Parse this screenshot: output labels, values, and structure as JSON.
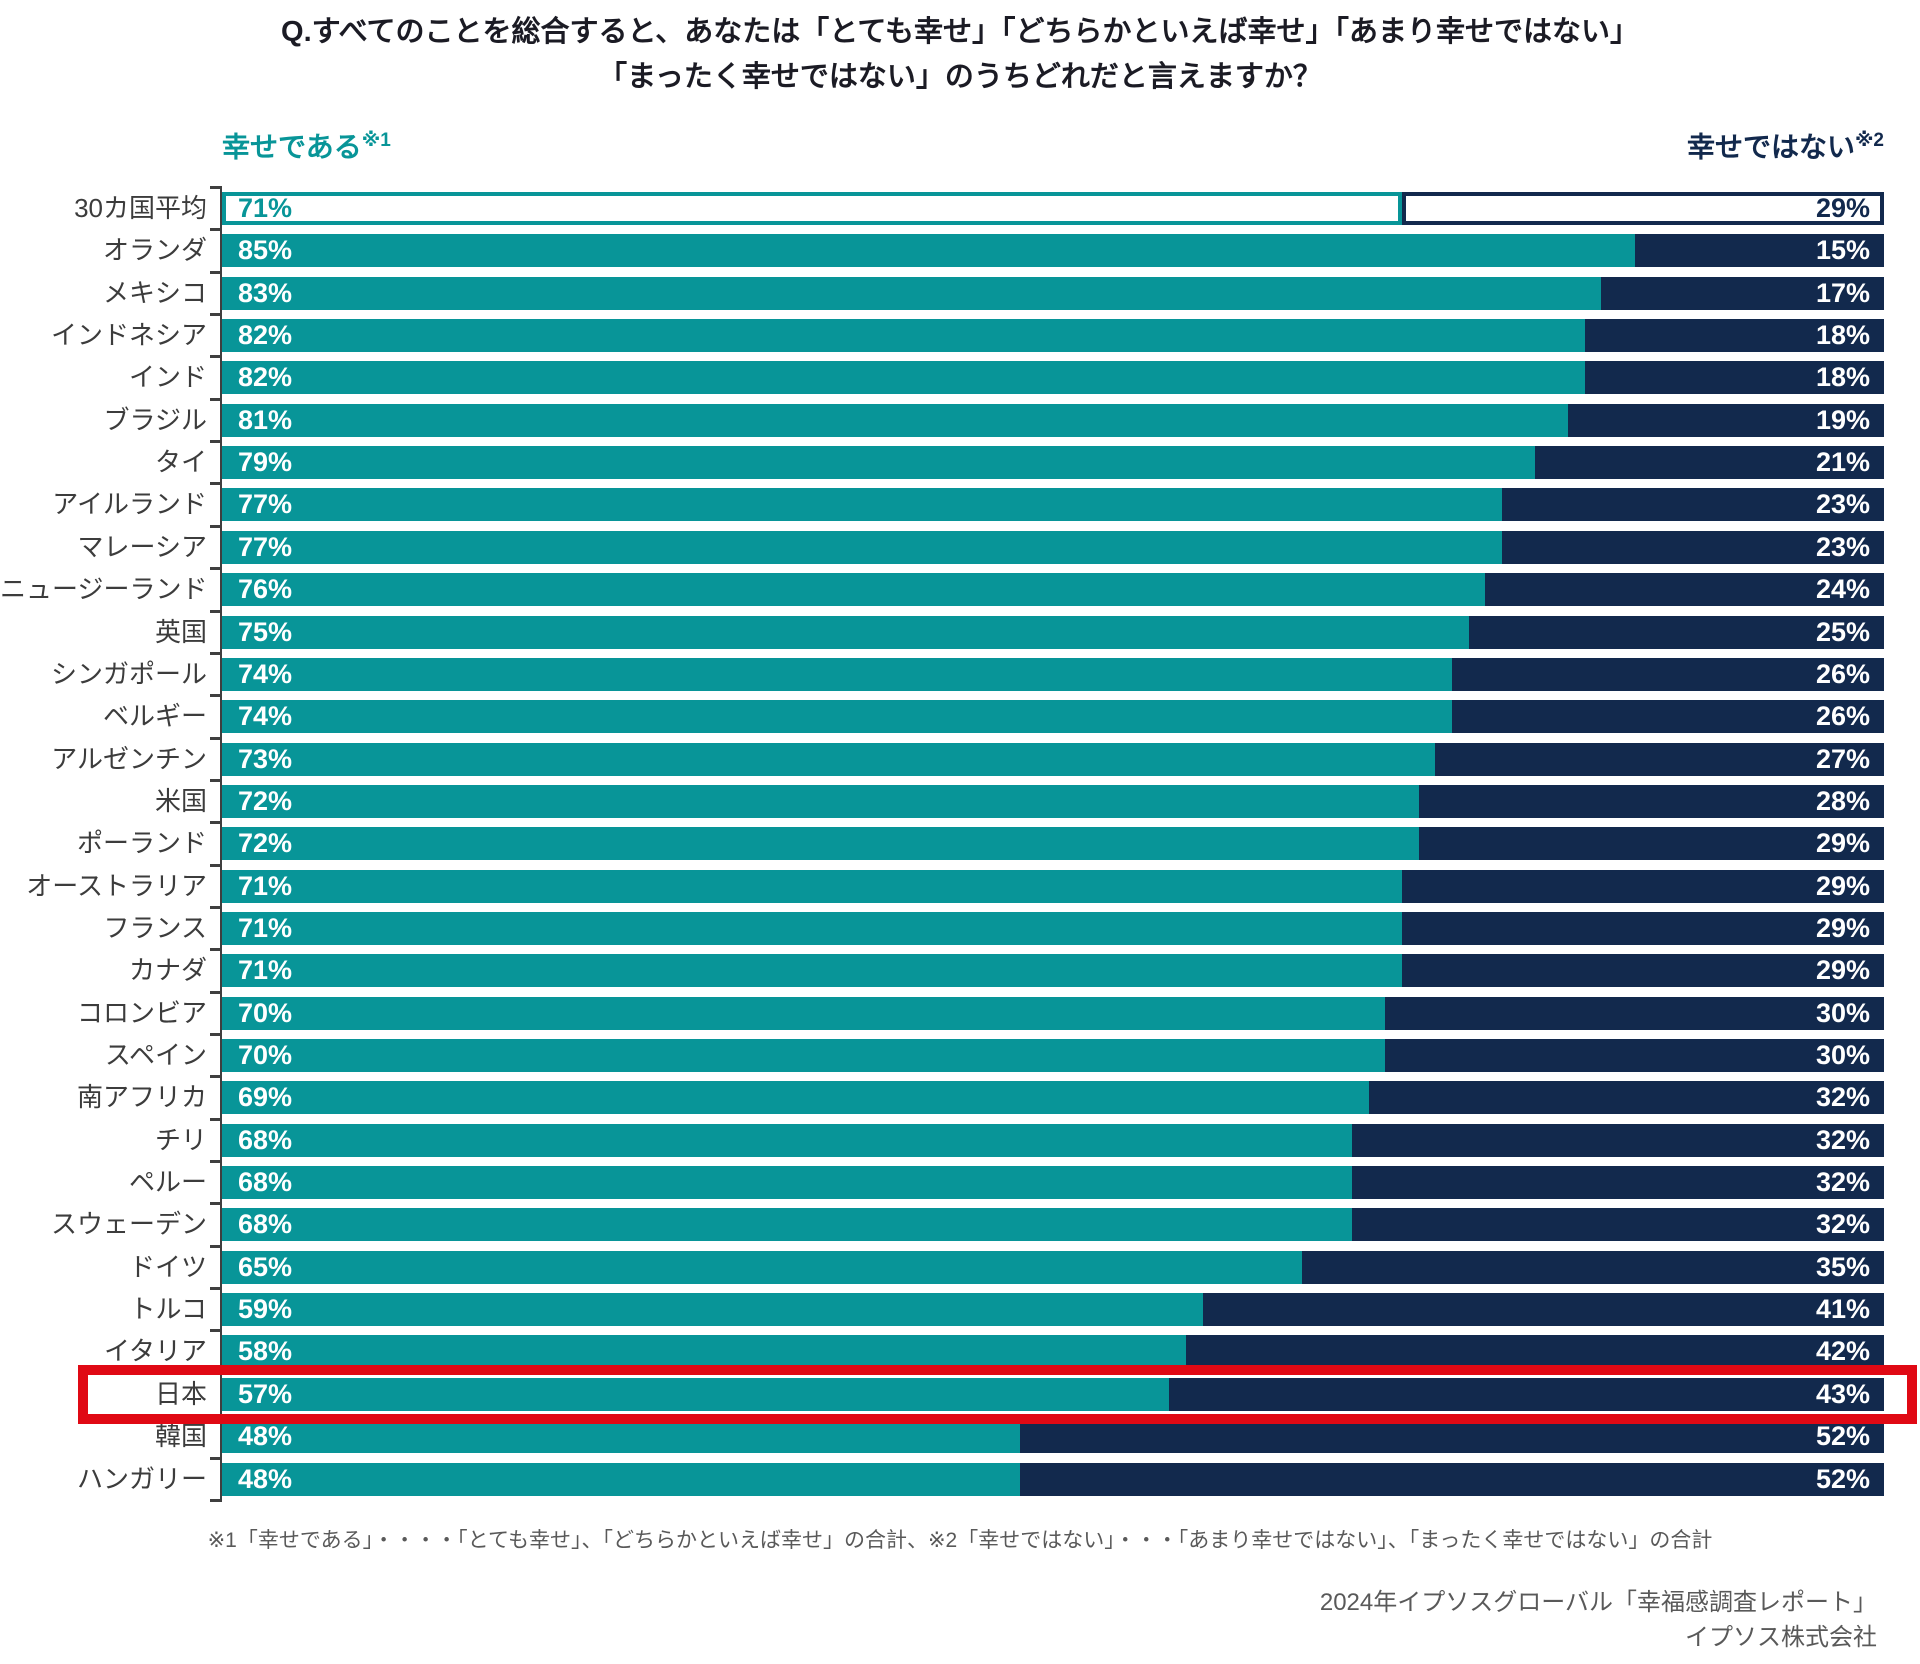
{
  "title": {
    "line1": "Q.すべてのことを総合すると、あなたは「とても幸せ」「どちらかといえば幸せ」「あまり幸せではない」",
    "line2": "「まったく幸せではない」のうちどれだと言えますか？"
  },
  "legend": {
    "happy_label": "幸せである",
    "happy_sup": "※1",
    "unhappy_label": "幸せではない",
    "unhappy_sup": "※2"
  },
  "chart_data": {
    "type": "bar",
    "orientation": "horizontal",
    "stacked": true,
    "xlim": [
      0,
      100
    ],
    "value_suffix": "%",
    "categories": [
      "30カ国平均",
      "オランダ",
      "メキシコ",
      "インドネシア",
      "インド",
      "ブラジル",
      "タイ",
      "アイルランド",
      "マレーシア",
      "ニュージーランド",
      "英国",
      "シンガポール",
      "ベルギー",
      "アルゼンチン",
      "米国",
      "ポーランド",
      "オーストラリア",
      "フランス",
      "カナダ",
      "コロンビア",
      "スペイン",
      "南アフリカ",
      "チリ",
      "ペルー",
      "スウェーデン",
      "ドイツ",
      "トルコ",
      "イタリア",
      "日本",
      "韓国",
      "ハンガリー"
    ],
    "series": [
      {
        "name": "幸せである",
        "values": [
          71,
          85,
          83,
          82,
          82,
          81,
          79,
          77,
          77,
          76,
          75,
          74,
          74,
          73,
          72,
          72,
          71,
          71,
          71,
          70,
          70,
          69,
          68,
          68,
          68,
          65,
          59,
          58,
          57,
          48,
          48
        ]
      },
      {
        "name": "幸せではない",
        "values": [
          29,
          15,
          17,
          18,
          18,
          19,
          21,
          23,
          23,
          24,
          25,
          26,
          26,
          27,
          28,
          29,
          29,
          29,
          29,
          30,
          30,
          32,
          32,
          32,
          32,
          35,
          41,
          42,
          43,
          52,
          52
        ]
      }
    ],
    "average_category": "30カ国平均",
    "highlighted_category": "日本",
    "colors": {
      "happy": "#089598",
      "unhappy": "#12294D",
      "highlight_box": "#E00914"
    },
    "legend_position": "top",
    "grid": false
  },
  "footnote": "※1「幸せである」・・・・「とても幸せ」、「どちらかといえば幸せ」の合計、※2「幸せではない」・・・「あまり幸せではない」、「まったく幸せではない」の合計",
  "source": {
    "line1": "2024年イプソスグローバル「幸福感調査レポート」",
    "line2": "イプソス株式会社"
  }
}
